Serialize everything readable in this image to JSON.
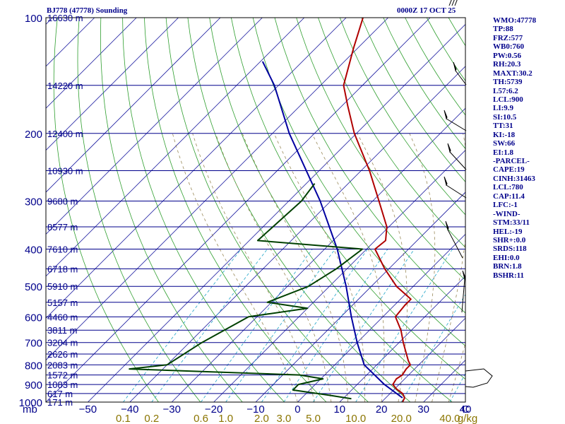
{
  "header": {
    "station": "BJ778 (47778) Sounding",
    "valid_time": "0000Z 17 OCT 25"
  },
  "indices": [
    "WMO:47778",
    "TP:88",
    "FRZ:577",
    "WB0:760",
    "PW:0.56",
    "RH:20.3",
    "MAXT:30.2",
    "TH:5739",
    "L57:6.2",
    "LCL:900",
    "LI:9.9",
    "SI:10.5",
    "TT:31",
    "KI:-18",
    "SW:66",
    "EI:1.8",
    "-PARCEL-",
    "CAPE:19",
    "CINH:31463",
    "LCL:780",
    "CAP:11.4",
    "LFC:-1",
    "-WIND-",
    "STM:33/11",
    "HEL:-19",
    "SHR+:0.0",
    "SRDS:118",
    "EHI:0.0",
    "BRN:1.8",
    "BSHR:11"
  ],
  "colors": {
    "frame": "#000000",
    "isobar": "#00008b",
    "isotherm": "#1a1aa0",
    "dry_adiabat": "#2e9e2e",
    "moist_adiabat": "#9a8a5a",
    "mixing_ratio": "#1fa5c8",
    "temperature": "#b00000",
    "dewpoint": "#004000",
    "parcel": "#0000a0",
    "mixing_label": "#8b7500",
    "axis_text": "#00008b",
    "wind": "#000000"
  },
  "chart_data": {
    "type": "line",
    "diagram": "skew-T log-P",
    "x_axis_unit": "C",
    "y_axis_unit": "mb",
    "pressure_levels": [
      100,
      200,
      300,
      400,
      500,
      600,
      700,
      800,
      900,
      1000
    ],
    "temperature_ticks": [
      -50,
      -40,
      -30,
      -20,
      -10,
      0,
      10,
      20,
      30,
      40
    ],
    "mixing_ratio_unit": "g/kg",
    "mixing_ratio_labels": [
      "0.1",
      "0.2",
      "0.6",
      "1.0",
      "2.0",
      "3.0",
      "5.0",
      "10.0",
      "20.0",
      "40.0"
    ],
    "height_labels": [
      {
        "p": 100,
        "label": "16630 m"
      },
      {
        "p": 150,
        "label": "14220 m"
      },
      {
        "p": 200,
        "label": "12400 m"
      },
      {
        "p": 250,
        "label": "10930 m"
      },
      {
        "p": 300,
        "label": "9680 m"
      },
      {
        "p": 350,
        "label": "8577 m"
      },
      {
        "p": 400,
        "label": "7610 m"
      },
      {
        "p": 450,
        "label": "6718 m"
      },
      {
        "p": 500,
        "label": "5910 m"
      },
      {
        "p": 550,
        "label": "5157 m"
      },
      {
        "p": 600,
        "label": "4460 m"
      },
      {
        "p": 650,
        "label": "3811 m"
      },
      {
        "p": 700,
        "label": "3204 m"
      },
      {
        "p": 750,
        "label": "2626 m"
      },
      {
        "p": 800,
        "label": "2083 m"
      },
      {
        "p": 850,
        "label": "1572 m"
      },
      {
        "p": 900,
        "label": "1083 m"
      },
      {
        "p": 950,
        "label": "617 m"
      },
      {
        "p": 1000,
        "label": "171 m"
      }
    ],
    "temperature_profile": [
      {
        "p": 1000,
        "t": 25.0
      },
      {
        "p": 975,
        "t": 24.5
      },
      {
        "p": 950,
        "t": 23.0
      },
      {
        "p": 925,
        "t": 20.5
      },
      {
        "p": 900,
        "t": 18.5
      },
      {
        "p": 870,
        "t": 18.0
      },
      {
        "p": 850,
        "t": 18.5
      },
      {
        "p": 820,
        "t": 18.0
      },
      {
        "p": 800,
        "t": 18.0
      },
      {
        "p": 780,
        "t": 16.5
      },
      {
        "p": 750,
        "t": 14.5
      },
      {
        "p": 700,
        "t": 11.0
      },
      {
        "p": 650,
        "t": 7.5
      },
      {
        "p": 600,
        "t": 3.0
      },
      {
        "p": 560,
        "t": 2.5
      },
      {
        "p": 540,
        "t": 2.5
      },
      {
        "p": 500,
        "t": -4.0
      },
      {
        "p": 450,
        "t": -11.0
      },
      {
        "p": 400,
        "t": -18.0
      },
      {
        "p": 380,
        "t": -17.5
      },
      {
        "p": 350,
        "t": -20.5
      },
      {
        "p": 300,
        "t": -28.5
      },
      {
        "p": 250,
        "t": -38.0
      },
      {
        "p": 200,
        "t": -50.5
      },
      {
        "p": 170,
        "t": -58.5
      },
      {
        "p": 150,
        "t": -64.5
      },
      {
        "p": 120,
        "t": -71.0
      },
      {
        "p": 100,
        "t": -76.0
      }
    ],
    "dewpoint_profile": [
      {
        "p": 980,
        "t": 12.0
      },
      {
        "p": 960,
        "t": 6.0
      },
      {
        "p": 930,
        "t": -4.0
      },
      {
        "p": 900,
        "t": -4.0
      },
      {
        "p": 870,
        "t": 0.5
      },
      {
        "p": 850,
        "t": -6.0
      },
      {
        "p": 820,
        "t": -48.0
      },
      {
        "p": 800,
        "t": -40.0
      },
      {
        "p": 700,
        "t": -37.0
      },
      {
        "p": 600,
        "t": -32.0
      },
      {
        "p": 570,
        "t": -20.0
      },
      {
        "p": 550,
        "t": -31.0
      },
      {
        "p": 500,
        "t": -25.0
      },
      {
        "p": 450,
        "t": -22.5
      },
      {
        "p": 400,
        "t": -21.0
      },
      {
        "p": 380,
        "t": -48.0
      },
      {
        "p": 300,
        "t": -47.0
      },
      {
        "p": 270,
        "t": -48.0
      }
    ],
    "parcel_profile": [
      {
        "p": 975,
        "t": 24.0
      },
      {
        "p": 900,
        "t": 16.5
      },
      {
        "p": 800,
        "t": 7.0
      },
      {
        "p": 700,
        "t": 0.0
      },
      {
        "p": 600,
        "t": -7.5
      },
      {
        "p": 500,
        "t": -16.0
      },
      {
        "p": 400,
        "t": -27.0
      },
      {
        "p": 300,
        "t": -42.5
      },
      {
        "p": 200,
        "t": -66.0
      },
      {
        "p": 150,
        "t": -81.0
      },
      {
        "p": 130,
        "t": -89.5
      }
    ],
    "ylim": [
      1000,
      100
    ],
    "grid": true,
    "legend": "none"
  }
}
